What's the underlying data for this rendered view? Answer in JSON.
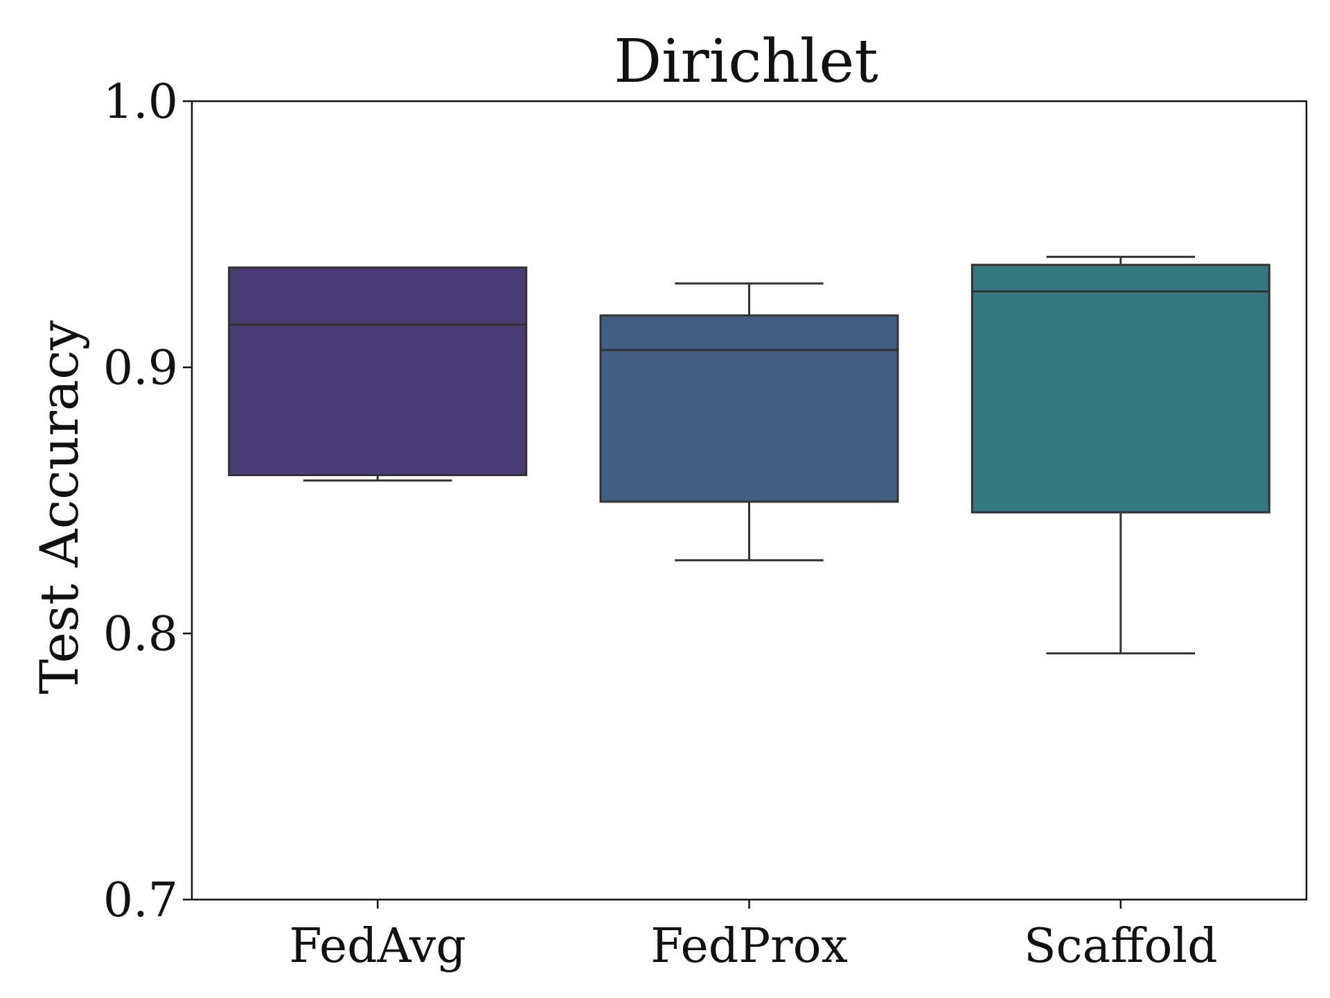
{
  "chart_data": {
    "type": "box",
    "title": "Dirichlet",
    "xlabel": "",
    "ylabel": "Test Accuracy",
    "ylim": [
      0.7,
      1.0
    ],
    "yticks": [
      "0.7",
      "0.8",
      "0.9",
      "1.0"
    ],
    "grid": false,
    "categories": [
      "FedAvg",
      "FedProx",
      "Scaffold"
    ],
    "boxes": [
      {
        "category": "FedAvg",
        "whisker_low": 0.8575,
        "q1": 0.8595,
        "median": 0.916,
        "q3": 0.9375,
        "whisker_high": 0.9375,
        "color": "#4a3b72"
      },
      {
        "category": "FedProx",
        "whisker_low": 0.8275,
        "q1": 0.8495,
        "median": 0.9065,
        "q3": 0.9195,
        "whisker_high": 0.9315,
        "color": "#425e82"
      },
      {
        "category": "Scaffold",
        "whisker_low": 0.7925,
        "q1": 0.8455,
        "median": 0.9285,
        "q3": 0.9385,
        "whisker_high": 0.9415,
        "color": "#35767f"
      }
    ]
  }
}
